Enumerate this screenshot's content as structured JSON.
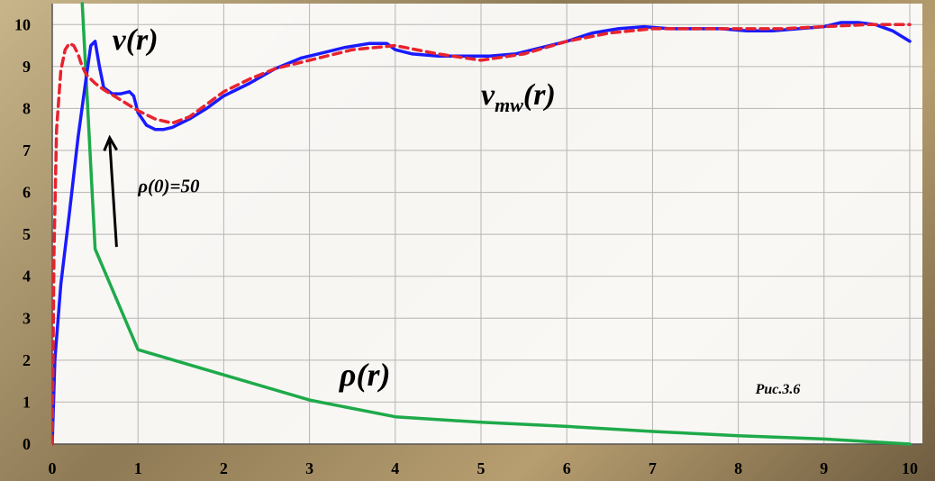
{
  "chart_data": {
    "type": "line",
    "title": "",
    "xlabel": "",
    "ylabel": "",
    "xlim": [
      0,
      10
    ],
    "ylim": [
      0,
      10.5
    ],
    "x_ticks": [
      "0",
      "1",
      "2",
      "3",
      "4",
      "5",
      "6",
      "7",
      "8",
      "9",
      "10"
    ],
    "y_ticks": [
      "0",
      "1",
      "2",
      "3",
      "4",
      "5",
      "6",
      "7",
      "8",
      "9",
      "10"
    ],
    "grid": true,
    "series": [
      {
        "name": "v(r)",
        "color": "#1a1aff",
        "style": "solid",
        "x": [
          0.0,
          0.03,
          0.1,
          0.2,
          0.3,
          0.4,
          0.45,
          0.5,
          0.55,
          0.6,
          0.7,
          0.8,
          0.9,
          0.95,
          1.0,
          1.1,
          1.2,
          1.3,
          1.4,
          1.6,
          1.8,
          2.0,
          2.3,
          2.6,
          2.9,
          3.1,
          3.4,
          3.7,
          3.9,
          4.0,
          4.2,
          4.5,
          4.8,
          5.1,
          5.4,
          5.7,
          6.0,
          6.3,
          6.6,
          6.9,
          7.2,
          7.5,
          7.8,
          8.1,
          8.4,
          8.7,
          9.0,
          9.2,
          9.4,
          9.6,
          9.8,
          10.0
        ],
        "y": [
          0.0,
          2.0,
          3.8,
          5.5,
          7.3,
          8.8,
          9.5,
          9.6,
          9.0,
          8.5,
          8.35,
          8.35,
          8.4,
          8.3,
          7.9,
          7.6,
          7.5,
          7.5,
          7.55,
          7.75,
          8.0,
          8.3,
          8.6,
          8.95,
          9.2,
          9.3,
          9.45,
          9.55,
          9.55,
          9.4,
          9.3,
          9.25,
          9.25,
          9.25,
          9.3,
          9.45,
          9.6,
          9.8,
          9.9,
          9.95,
          9.9,
          9.9,
          9.9,
          9.85,
          9.85,
          9.9,
          9.95,
          10.05,
          10.05,
          10.0,
          9.85,
          9.6
        ]
      },
      {
        "name": "v_mw(r)",
        "color": "#e8232e",
        "style": "dashed",
        "x": [
          0.0,
          0.02,
          0.05,
          0.1,
          0.15,
          0.2,
          0.25,
          0.3,
          0.35,
          0.4,
          0.5,
          0.6,
          0.8,
          1.0,
          1.2,
          1.4,
          1.6,
          1.8,
          2.0,
          2.3,
          2.6,
          3.0,
          3.5,
          4.0,
          4.5,
          5.0,
          5.5,
          6.0,
          6.5,
          7.0,
          7.5,
          8.0,
          8.5,
          9.0,
          9.5,
          10.0
        ],
        "y": [
          0.0,
          4.5,
          7.5,
          8.9,
          9.4,
          9.55,
          9.5,
          9.3,
          9.0,
          8.8,
          8.6,
          8.45,
          8.2,
          7.95,
          7.75,
          7.65,
          7.8,
          8.1,
          8.4,
          8.7,
          8.95,
          9.15,
          9.4,
          9.5,
          9.3,
          9.15,
          9.3,
          9.6,
          9.8,
          9.9,
          9.9,
          9.9,
          9.9,
          9.95,
          10.0,
          10.0
        ]
      },
      {
        "name": "ρ(r)",
        "color": "#1eaa4a",
        "style": "solid",
        "x": [
          0.35,
          0.5,
          1.0,
          2.0,
          3.0,
          4.0,
          5.0,
          6.0,
          7.0,
          8.0,
          9.0,
          10.0
        ],
        "y": [
          10.5,
          4.65,
          2.25,
          1.65,
          1.05,
          0.65,
          0.52,
          0.42,
          0.3,
          0.2,
          0.12,
          0.0
        ]
      }
    ],
    "annotations": [
      {
        "text": "v(r)",
        "x": 0.7,
        "y": 9.4
      },
      {
        "text": "v",
        "sub": "mw",
        "suffix": "(r)",
        "x": 5.0,
        "y": 8.1
      },
      {
        "text": "ρ(0)=50",
        "x": 1.0,
        "y": 6.0
      },
      {
        "text": "ρ(r)",
        "x": 3.35,
        "y": 1.4
      },
      {
        "text": "Рис.3.6",
        "x": 8.2,
        "y": 1.2
      }
    ],
    "arrow": {
      "from": [
        0.75,
        4.7
      ],
      "to": [
        0.67,
        7.3
      ]
    }
  }
}
